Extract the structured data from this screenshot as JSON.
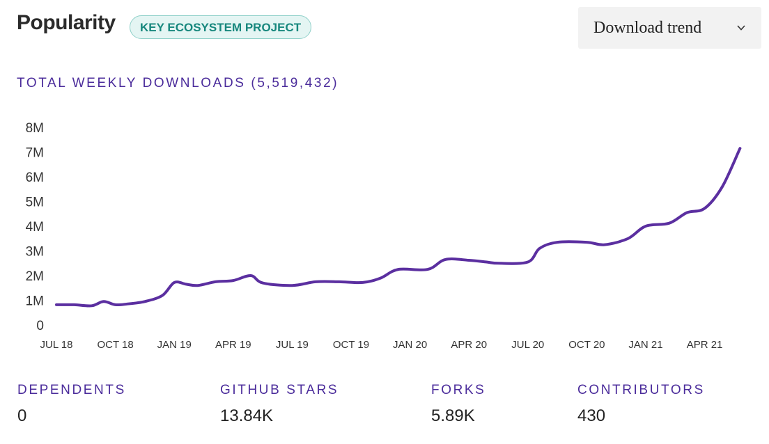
{
  "header": {
    "title": "Popularity",
    "badge": "KEY ECOSYSTEM PROJECT",
    "dropdown_label": "Download trend"
  },
  "chart_heading": "TOTAL WEEKLY DOWNLOADS (5,519,432)",
  "stats": [
    {
      "label": "DEPENDENTS",
      "value": "0"
    },
    {
      "label": "GITHUB STARS",
      "value": "13.84K"
    },
    {
      "label": "FORKS",
      "value": "5.89K"
    },
    {
      "label": "CONTRIBUTORS",
      "value": "430"
    }
  ],
  "colors": {
    "line": "#5b2fa0",
    "accent": "#4b2c9b",
    "badge_text": "#17877d"
  },
  "chart_data": {
    "type": "line",
    "title": "",
    "xlabel": "",
    "ylabel": "",
    "ylim": [
      0,
      8000000
    ],
    "yticks": [
      0,
      1000000,
      2000000,
      3000000,
      4000000,
      5000000,
      6000000,
      7000000,
      8000000
    ],
    "ytick_labels": [
      "0",
      "1M",
      "2M",
      "3M",
      "4M",
      "5M",
      "6M",
      "7M",
      "8M"
    ],
    "xtick_labels": [
      "JUL 18",
      "OCT 18",
      "JAN 19",
      "APR 19",
      "JUL 19",
      "OCT 19",
      "JAN 20",
      "APR 20",
      "JUL 20",
      "OCT 20",
      "JAN 21",
      "APR 21"
    ],
    "grid": false,
    "series": [
      {
        "values": [
          [
            0.0,
            0.82
          ],
          [
            0.3,
            0.82
          ],
          [
            0.6,
            0.78
          ],
          [
            0.8,
            0.95
          ],
          [
            1.0,
            0.82
          ],
          [
            1.2,
            0.85
          ],
          [
            1.5,
            0.95
          ],
          [
            1.8,
            1.2
          ],
          [
            2.0,
            1.72
          ],
          [
            2.2,
            1.65
          ],
          [
            2.4,
            1.6
          ],
          [
            2.7,
            1.75
          ],
          [
            3.0,
            1.8
          ],
          [
            3.3,
            2.0
          ],
          [
            3.5,
            1.7
          ],
          [
            4.0,
            1.6
          ],
          [
            4.4,
            1.75
          ],
          [
            4.8,
            1.75
          ],
          [
            5.2,
            1.72
          ],
          [
            5.5,
            1.9
          ],
          [
            5.8,
            2.25
          ],
          [
            6.3,
            2.25
          ],
          [
            6.6,
            2.65
          ],
          [
            7.0,
            2.62
          ],
          [
            7.3,
            2.55
          ],
          [
            7.5,
            2.5
          ],
          [
            8.0,
            2.55
          ],
          [
            8.2,
            3.1
          ],
          [
            8.5,
            3.35
          ],
          [
            9.0,
            3.35
          ],
          [
            9.3,
            3.25
          ],
          [
            9.7,
            3.5
          ],
          [
            10.0,
            4.0
          ],
          [
            10.4,
            4.12
          ],
          [
            10.7,
            4.55
          ],
          [
            11.0,
            4.72
          ],
          [
            11.3,
            5.6
          ],
          [
            11.6,
            7.15
          ]
        ]
      }
    ]
  }
}
